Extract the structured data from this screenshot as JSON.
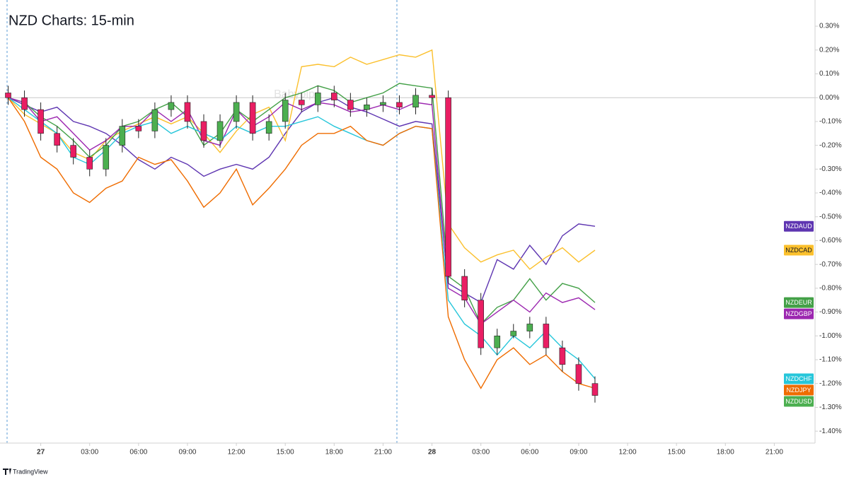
{
  "chart_data": {
    "type": "line",
    "title": "NZD Charts: 15-min",
    "watermark": "Babypips",
    "source": "TradingView",
    "x": [
      -2,
      -1,
      0,
      1,
      2,
      3,
      4,
      5,
      6,
      7,
      8,
      9,
      10,
      11,
      12,
      13,
      14,
      15,
      16,
      17,
      18,
      19,
      20,
      21,
      22,
      23,
      24,
      25,
      26,
      27,
      28,
      29,
      30,
      31,
      32,
      33,
      34
    ],
    "xlim": [
      -2.5,
      47.5
    ],
    "xticks": [
      {
        "value": 0,
        "label": "27"
      },
      {
        "value": 3,
        "label": "03:00"
      },
      {
        "value": 6,
        "label": "06:00"
      },
      {
        "value": 9,
        "label": "09:00"
      },
      {
        "value": 12,
        "label": "12:00"
      },
      {
        "value": 15,
        "label": "15:00"
      },
      {
        "value": 18,
        "label": "18:00"
      },
      {
        "value": 21,
        "label": "21:00"
      },
      {
        "value": 24,
        "label": "28"
      },
      {
        "value": 27,
        "label": "03:00"
      },
      {
        "value": 30,
        "label": "06:00"
      },
      {
        "value": 33,
        "label": "09:00"
      },
      {
        "value": 36,
        "label": "12:00"
      },
      {
        "value": 39,
        "label": "15:00"
      },
      {
        "value": 42,
        "label": "18:00"
      },
      {
        "value": 45,
        "label": "21:00"
      }
    ],
    "ylim": [
      -1.45,
      0.41
    ],
    "yticks": [
      {
        "value": 0.3,
        "label": "0.30%"
      },
      {
        "value": 0.2,
        "label": "0.20%"
      },
      {
        "value": 0.1,
        "label": "0.10%"
      },
      {
        "value": 0,
        "label": "0.00%"
      },
      {
        "value": -0.1,
        "label": "-0.10%"
      },
      {
        "value": -0.2,
        "label": "-0.20%"
      },
      {
        "value": -0.3,
        "label": "-0.30%"
      },
      {
        "value": -0.4,
        "label": "-0.40%"
      },
      {
        "value": -0.5,
        "label": "-0.50%"
      },
      {
        "value": -0.6,
        "label": "-0.60%"
      },
      {
        "value": -0.7,
        "label": "-0.70%"
      },
      {
        "value": -0.8,
        "label": "-0.80%"
      },
      {
        "value": -0.9,
        "label": "-0.90%"
      },
      {
        "value": -1.0,
        "label": "-1.00%"
      },
      {
        "value": -1.1,
        "label": "-1.10%"
      },
      {
        "value": -1.2,
        "label": "-1.20%"
      },
      {
        "value": -1.3,
        "label": "-1.30%"
      },
      {
        "value": -1.4,
        "label": "-1.40%"
      }
    ],
    "series": [
      {
        "name": "NZDAUD",
        "color": "#5e35b1",
        "values": [
          0,
          -0.03,
          -0.06,
          -0.04,
          -0.1,
          -0.12,
          -0.15,
          -0.2,
          -0.26,
          -0.3,
          -0.25,
          -0.28,
          -0.33,
          -0.3,
          -0.28,
          -0.3,
          -0.25,
          -0.15,
          -0.06,
          -0.02,
          0.0,
          -0.04,
          -0.06,
          -0.09,
          -0.12,
          -0.1,
          -0.11,
          -0.78,
          -0.82,
          -0.86,
          -0.68,
          -0.72,
          -0.62,
          -0.7,
          -0.58,
          -0.53,
          -0.54
        ]
      },
      {
        "name": "NZDCAD",
        "color": "#fbc02d",
        "values": [
          0,
          -0.07,
          -0.11,
          -0.15,
          -0.23,
          -0.26,
          -0.18,
          -0.14,
          -0.11,
          -0.08,
          -0.11,
          -0.08,
          -0.15,
          -0.23,
          -0.14,
          -0.07,
          -0.04,
          -0.18,
          0.13,
          0.14,
          0.13,
          0.17,
          0.14,
          0.16,
          0.18,
          0.17,
          0.2,
          -0.53,
          -0.63,
          -0.69,
          -0.66,
          -0.64,
          -0.72,
          -0.67,
          -0.63,
          -0.69,
          -0.64
        ]
      },
      {
        "name": "NZDEUR",
        "color": "#43a047",
        "values": [
          0,
          -0.02,
          -0.08,
          -0.12,
          -0.18,
          -0.25,
          -0.2,
          -0.12,
          -0.1,
          -0.05,
          -0.02,
          -0.08,
          -0.2,
          -0.15,
          -0.05,
          -0.1,
          -0.05,
          0,
          0.02,
          0.05,
          0.03,
          -0.02,
          0,
          0.02,
          0.06,
          0.05,
          0.04,
          -0.75,
          -0.8,
          -0.95,
          -0.88,
          -0.85,
          -0.76,
          -0.85,
          -0.78,
          -0.8,
          -0.86
        ]
      },
      {
        "name": "NZDGBP",
        "color": "#9c27b0",
        "values": [
          0,
          -0.02,
          -0.1,
          -0.08,
          -0.15,
          -0.22,
          -0.18,
          -0.12,
          -0.12,
          -0.05,
          -0.1,
          -0.05,
          -0.18,
          -0.2,
          -0.05,
          -0.12,
          -0.08,
          -0.02,
          -0.05,
          -0.02,
          -0.03,
          -0.06,
          -0.05,
          -0.03,
          -0.05,
          -0.02,
          -0.03,
          -0.8,
          -0.84,
          -0.95,
          -0.9,
          -0.85,
          -0.9,
          -0.82,
          -0.86,
          -0.84,
          -0.89
        ]
      },
      {
        "name": "NZDCHF",
        "color": "#26c6da",
        "values": [
          0,
          -0.05,
          -0.1,
          -0.15,
          -0.25,
          -0.28,
          -0.22,
          -0.15,
          -0.12,
          -0.1,
          -0.15,
          -0.12,
          -0.15,
          -0.18,
          -0.12,
          -0.15,
          -0.12,
          -0.12,
          -0.1,
          -0.08,
          -0.12,
          -0.15,
          -0.18,
          -0.2,
          -0.15,
          -0.12,
          -0.13,
          -0.85,
          -0.95,
          -1.0,
          -1.08,
          -1.0,
          -1.05,
          -0.98,
          -1.05,
          -1.1,
          -1.18
        ]
      },
      {
        "name": "NZDJPY",
        "color": "#ef6c00",
        "values": [
          0,
          -0.1,
          -0.25,
          -0.3,
          -0.4,
          -0.44,
          -0.38,
          -0.35,
          -0.25,
          -0.28,
          -0.26,
          -0.35,
          -0.46,
          -0.4,
          -0.3,
          -0.45,
          -0.38,
          -0.3,
          -0.2,
          -0.15,
          -0.15,
          -0.12,
          -0.18,
          -0.2,
          -0.15,
          -0.12,
          -0.13,
          -0.92,
          -1.1,
          -1.22,
          -1.1,
          -1.05,
          -1.12,
          -1.08,
          -1.15,
          -1.2,
          -1.22
        ]
      }
    ],
    "candles": {
      "name": "NZDUSD",
      "color": "#4caf50",
      "up_color": "#4caf50",
      "down_color": "#e91e63",
      "open": [
        0.02,
        0,
        -0.05,
        -0.15,
        -0.2,
        -0.25,
        -0.3,
        -0.2,
        -0.12,
        -0.14,
        -0.05,
        -0.02,
        -0.1,
        -0.18,
        -0.1,
        -0.02,
        -0.15,
        -0.1,
        -0.01,
        -0.03,
        0.02,
        -0.01,
        -0.05,
        -0.03,
        -0.02,
        -0.04,
        0.01,
        0.0,
        -0.75,
        -0.85,
        -1.05,
        -1.0,
        -0.98,
        -0.95,
        -1.05,
        -1.12,
        -1.2
      ],
      "high": [
        0.05,
        0.03,
        -0.02,
        -0.12,
        -0.17,
        -0.22,
        -0.17,
        -0.09,
        -0.09,
        -0.02,
        0.01,
        0.01,
        -0.07,
        -0.07,
        0.01,
        0.01,
        -0.07,
        0.02,
        0.02,
        0.05,
        0.05,
        0.02,
        0.0,
        0.01,
        0.01,
        0.04,
        0.04,
        0.03,
        -0.72,
        -0.82,
        -0.97,
        -0.95,
        -0.92,
        -0.92,
        -1.02,
        -1.09,
        -1.17
      ],
      "low": [
        -0.03,
        -0.08,
        -0.18,
        -0.23,
        -0.28,
        -0.33,
        -0.33,
        -0.23,
        -0.17,
        -0.17,
        -0.08,
        -0.13,
        -0.21,
        -0.21,
        -0.13,
        -0.18,
        -0.18,
        -0.13,
        -0.06,
        -0.06,
        -0.04,
        -0.08,
        -0.08,
        -0.06,
        -0.07,
        -0.07,
        -0.03,
        -0.78,
        -0.88,
        -1.08,
        -1.08,
        -1.01,
        -1.01,
        -1.08,
        -1.15,
        -1.23,
        -1.28
      ],
      "close": [
        0,
        -0.05,
        -0.15,
        -0.2,
        -0.25,
        -0.3,
        -0.2,
        -0.12,
        -0.14,
        -0.05,
        -0.02,
        -0.1,
        -0.18,
        -0.1,
        -0.02,
        -0.15,
        -0.1,
        -0.01,
        -0.03,
        0.02,
        -0.01,
        -0.05,
        -0.03,
        -0.02,
        -0.04,
        0.01,
        0.0,
        -0.75,
        -0.85,
        -1.05,
        -1.0,
        -0.98,
        -0.95,
        -1.05,
        -1.12,
        -1.2,
        -1.25
      ]
    }
  }
}
